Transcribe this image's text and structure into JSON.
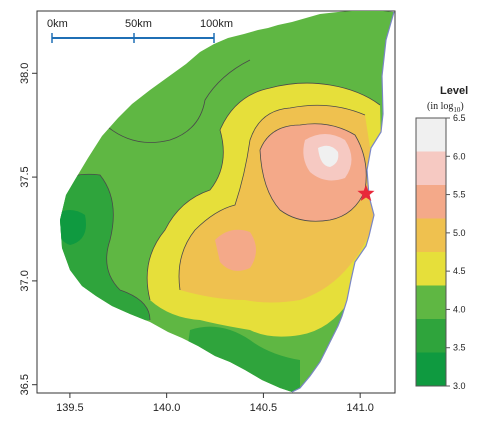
{
  "map": {
    "x_ticks": [
      "139.5",
      "140.0",
      "140.5",
      "141.0"
    ],
    "y_ticks": [
      "38.0",
      "37.5",
      "37.0",
      "36.5"
    ],
    "x_range": [
      139.33,
      141.18
    ],
    "y_range": [
      36.46,
      38.3
    ]
  },
  "scale_bar": {
    "labels": [
      "0km",
      "50km",
      "100km"
    ],
    "color": "#1f6fb5"
  },
  "legend": {
    "title": "Level",
    "unit": "(in log",
    "unit_sub": "10",
    "unit_close": ")",
    "levels": [
      "6.5",
      "6.0",
      "5.5",
      "5.0",
      "4.5",
      "4.0",
      "3.5",
      "3.0"
    ],
    "colors": [
      "#f0f0f0",
      "#f6c9c2",
      "#f4a989",
      "#efc14f",
      "#e6df3a",
      "#5fb743",
      "#2fa43c",
      "#0f9a40"
    ]
  },
  "marker": {
    "symbol": "star",
    "color": "#e8283a",
    "lon": 141.03,
    "lat": 37.42
  }
}
